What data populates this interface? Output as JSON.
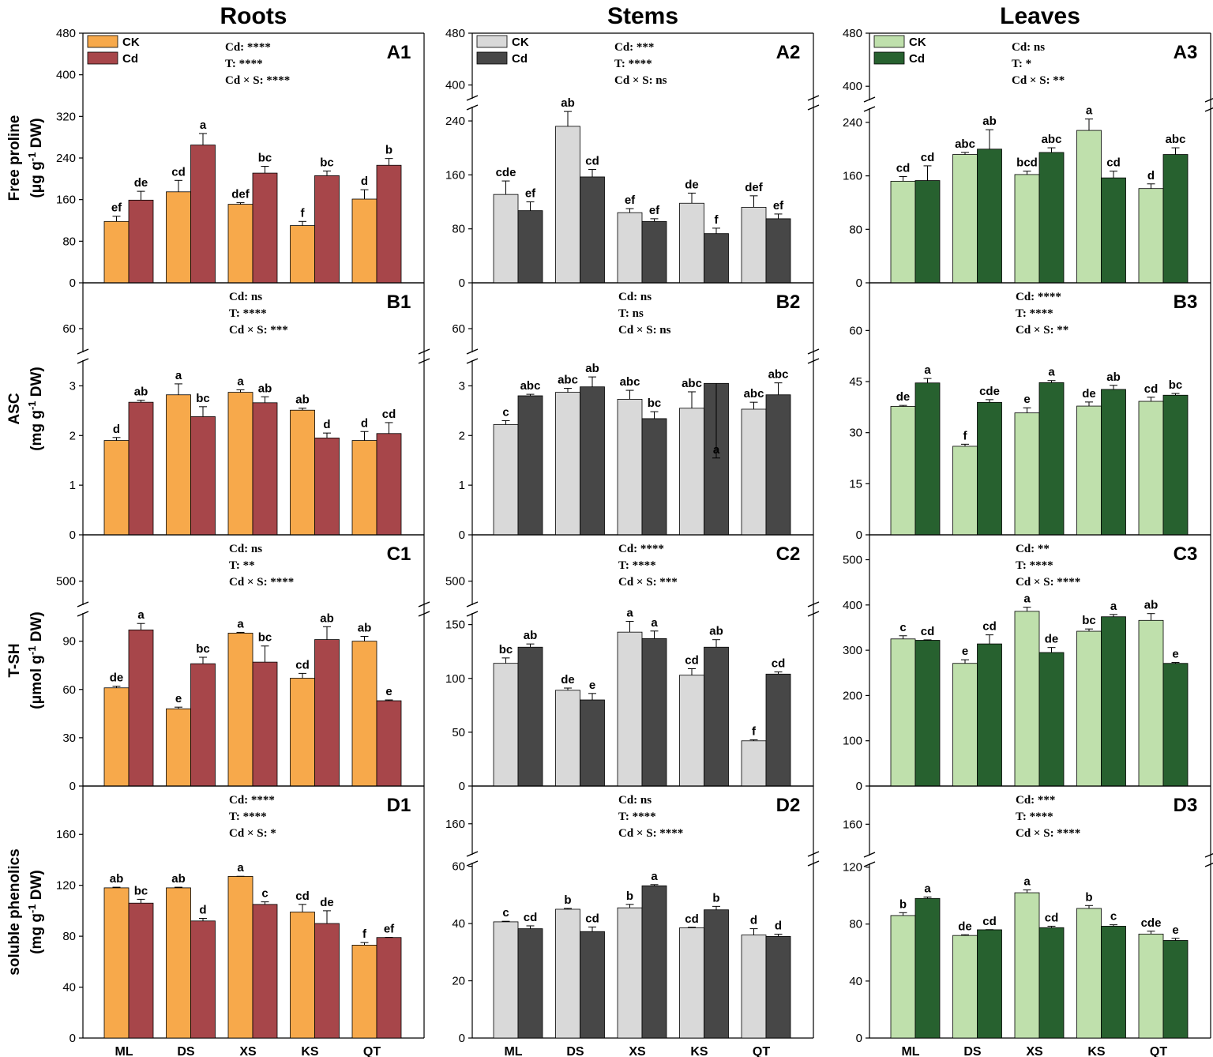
{
  "figure": {
    "column_titles": [
      "Roots",
      "Stems",
      "Leaves"
    ],
    "row_ylabels": [
      [
        "Free proline",
        "(μg g",
        "-1",
        " DW)"
      ],
      [
        "ASC",
        "(mg g",
        "-1",
        " DW)"
      ],
      [
        "T-SH",
        "(μmol g",
        "-1",
        " DW)"
      ],
      [
        "soluble phenolics",
        "(mg g",
        "-1",
        " DW)"
      ]
    ],
    "x_categories": [
      "ML",
      "DS",
      "XS",
      "KS",
      "QT"
    ],
    "legend_labels": [
      "CK",
      "Cd"
    ],
    "colors": {
      "Roots": [
        "#F7A94B",
        "#A7464A"
      ],
      "Stems": [
        "#D9D9D9",
        "#474747"
      ],
      "Leaves": [
        "#BFE0AC",
        "#27612F"
      ]
    }
  },
  "chart_data": [
    {
      "id": "A1",
      "type": "bar",
      "tissue": "Roots",
      "ylabel": "Free proline (μg g-1 DW)",
      "categories": [
        "ML",
        "DS",
        "XS",
        "KS",
        "QT"
      ],
      "series": [
        {
          "name": "CK",
          "values": [
            118,
            175,
            151,
            110,
            161
          ],
          "errors": [
            10,
            22,
            3,
            8,
            18
          ],
          "letters": [
            "ef",
            "cd",
            "def",
            "f",
            "d"
          ]
        },
        {
          "name": "Cd",
          "values": [
            159,
            265,
            211,
            206,
            226
          ],
          "errors": [
            17,
            22,
            13,
            9,
            13
          ],
          "letters": [
            "de",
            "a",
            "bc",
            "bc",
            "b"
          ]
        }
      ],
      "stats": [
        "Cd: ****",
        "T: ****",
        "Cd × S: ****"
      ],
      "ticks": [
        "0",
        "80",
        "160",
        "240",
        "320",
        "400",
        "480"
      ],
      "broken": false,
      "ylim": [
        0,
        480
      ]
    },
    {
      "id": "A2",
      "type": "bar",
      "tissue": "Stems",
      "ylabel": "Free proline (μg g-1 DW)",
      "categories": [
        "ML",
        "DS",
        "XS",
        "KS",
        "QT"
      ],
      "series": [
        {
          "name": "CK",
          "values": [
            131,
            232,
            104,
            118,
            112
          ],
          "errors": [
            20,
            22,
            6,
            15,
            17
          ],
          "letters": [
            "cde",
            "ab",
            "ef",
            "de",
            "def"
          ]
        },
        {
          "name": "Cd",
          "values": [
            107,
            157,
            91,
            73,
            95
          ],
          "errors": [
            13,
            11,
            4,
            8,
            7
          ],
          "letters": [
            "ef",
            "cd",
            "ef",
            "f",
            "ef"
          ]
        }
      ],
      "stats": [
        "Cd: ***",
        "T: ****",
        "Cd × S: ns"
      ],
      "ticks": [
        "0",
        "80",
        "160",
        "240",
        "400",
        "480"
      ],
      "broken": true,
      "lower_range": [
        0,
        260
      ],
      "upper_range": [
        380,
        480
      ]
    },
    {
      "id": "A3",
      "type": "bar",
      "tissue": "Leaves",
      "ylabel": "Free proline (μg g-1 DW)",
      "categories": [
        "ML",
        "DS",
        "XS",
        "KS",
        "QT"
      ],
      "series": [
        {
          "name": "CK",
          "values": [
            152,
            192,
            162,
            228,
            141
          ],
          "errors": [
            7,
            3,
            5,
            17,
            7
          ],
          "letters": [
            "cd",
            "abc",
            "bcd",
            "a",
            "d"
          ]
        },
        {
          "name": "Cd",
          "values": [
            153,
            200,
            195,
            157,
            192
          ],
          "errors": [
            22,
            29,
            7,
            10,
            10
          ],
          "letters": [
            "cd",
            "ab",
            "abc",
            "cd",
            "abc"
          ]
        }
      ],
      "stats": [
        "Cd: ns",
        "T: *",
        "Cd × S: **"
      ],
      "ticks": [
        "0",
        "80",
        "160",
        "240",
        "400",
        "480"
      ],
      "broken": true,
      "lower_range": [
        0,
        260
      ],
      "upper_range": [
        380,
        480
      ]
    },
    {
      "id": "B1",
      "type": "bar",
      "tissue": "Roots",
      "ylabel": "ASC (mg g-1 DW)",
      "categories": [
        "ML",
        "DS",
        "XS",
        "KS",
        "QT"
      ],
      "series": [
        {
          "name": "CK",
          "values": [
            1.9,
            2.82,
            2.87,
            2.51,
            1.9
          ],
          "errors": [
            0.06,
            0.22,
            0.05,
            0.04,
            0.18
          ],
          "letters": [
            "d",
            "a",
            "a",
            "ab",
            "d"
          ]
        },
        {
          "name": "Cd",
          "values": [
            2.67,
            2.38,
            2.66,
            1.95,
            2.04
          ],
          "errors": [
            0.04,
            0.2,
            0.12,
            0.1,
            0.22
          ],
          "letters": [
            "ab",
            "bc",
            "ab",
            "d",
            "cd"
          ]
        }
      ],
      "stats": [
        "Cd: ns",
        "T: ****",
        "Cd × S: ***"
      ],
      "ticks": [
        "0",
        "1",
        "2",
        "3",
        "60"
      ],
      "broken": true,
      "lower_range": [
        0,
        3.5
      ],
      "upper_range": [
        50,
        80
      ]
    },
    {
      "id": "B2",
      "type": "bar",
      "tissue": "Stems",
      "ylabel": "ASC (mg g-1 DW)",
      "categories": [
        "ML",
        "DS",
        "XS",
        "KS",
        "QT"
      ],
      "series": [
        {
          "name": "CK",
          "values": [
            2.22,
            2.87,
            2.73,
            2.55,
            2.53
          ],
          "errors": [
            0.08,
            0.08,
            0.18,
            0.33,
            0.14
          ],
          "letters": [
            "c",
            "abc",
            "abc",
            "abc",
            "abc"
          ]
        },
        {
          "name": "Cd",
          "values": [
            2.8,
            2.98,
            2.34,
            3.05,
            2.82
          ],
          "errors": [
            0.03,
            0.2,
            0.14,
            0.48,
            0.24
          ],
          "letters": [
            "abc",
            "ab",
            "bc",
            "a",
            "abc"
          ]
        }
      ],
      "stats": [
        "Cd: ns",
        "T: ns",
        "Cd × S: ns"
      ],
      "ticks": [
        "0",
        "1",
        "2",
        "3",
        "60"
      ],
      "broken": true,
      "lower_range": [
        0,
        3.5
      ],
      "upper_range": [
        50,
        80
      ]
    },
    {
      "id": "B3",
      "type": "bar",
      "tissue": "Leaves",
      "ylabel": "ASC (mg g-1 DW)",
      "categories": [
        "ML",
        "DS",
        "XS",
        "KS",
        "QT"
      ],
      "series": [
        {
          "name": "CK",
          "values": [
            37.7,
            26,
            35.8,
            37.8,
            39.2
          ],
          "errors": [
            0.3,
            0.6,
            1.5,
            1.2,
            1.2
          ],
          "letters": [
            "de",
            "f",
            "e",
            "de",
            "cd"
          ]
        },
        {
          "name": "Cd",
          "values": [
            44.6,
            38.9,
            44.7,
            42.7,
            41
          ],
          "errors": [
            1.3,
            0.8,
            0.6,
            1.2,
            0.5
          ],
          "letters": [
            "a",
            "cde",
            "a",
            "ab",
            "bc"
          ]
        }
      ],
      "stats": [
        "Cd: ****",
        "T: ****",
        "Cd × S: **"
      ],
      "ticks": [
        "0",
        "15",
        "30",
        "45",
        "60"
      ],
      "broken": false,
      "ylim": [
        0,
        74
      ]
    },
    {
      "id": "C1",
      "type": "bar",
      "tissue": "Roots",
      "ylabel": "T-SH (μmol g-1 DW)",
      "categories": [
        "ML",
        "DS",
        "XS",
        "KS",
        "QT"
      ],
      "series": [
        {
          "name": "CK",
          "values": [
            61,
            48,
            95,
            67,
            90
          ],
          "errors": [
            1,
            1,
            0.5,
            3,
            3
          ],
          "letters": [
            "de",
            "e",
            "a",
            "cd",
            "ab"
          ]
        },
        {
          "name": "Cd",
          "values": [
            97,
            76,
            77,
            91,
            53
          ],
          "errors": [
            4,
            4,
            10,
            8,
            0.5
          ],
          "letters": [
            "a",
            "bc",
            "bc",
            "ab",
            "e"
          ]
        }
      ],
      "stats": [
        "Cd: ns",
        "T: **",
        "Cd × S: ****"
      ],
      "ticks": [
        "0",
        "30",
        "60",
        "90",
        "500"
      ],
      "broken": true,
      "lower_range": [
        0,
        107
      ],
      "upper_range": [
        470,
        560
      ]
    },
    {
      "id": "C2",
      "type": "bar",
      "tissue": "Stems",
      "ylabel": "T-SH (μmol g-1 DW)",
      "categories": [
        "ML",
        "DS",
        "XS",
        "KS",
        "QT"
      ],
      "series": [
        {
          "name": "CK",
          "values": [
            114,
            89,
            143,
            103,
            42
          ],
          "errors": [
            5,
            2,
            10,
            6,
            1
          ],
          "letters": [
            "bc",
            "de",
            "a",
            "cd",
            "f"
          ]
        },
        {
          "name": "Cd",
          "values": [
            129,
            80,
            137,
            129,
            104
          ],
          "errors": [
            3,
            6,
            7,
            7,
            2
          ],
          "letters": [
            "ab",
            "e",
            "a",
            "ab",
            "cd"
          ]
        }
      ],
      "stats": [
        "Cd: ****",
        "T: ****",
        "Cd × S: ***"
      ],
      "ticks": [
        "0",
        "50",
        "100",
        "150",
        "500"
      ],
      "broken": true,
      "lower_range": [
        0,
        160
      ],
      "upper_range": [
        470,
        560
      ]
    },
    {
      "id": "C3",
      "type": "bar",
      "tissue": "Leaves",
      "ylabel": "T-SH (μmol g-1 DW)",
      "categories": [
        "ML",
        "DS",
        "XS",
        "KS",
        "QT"
      ],
      "series": [
        {
          "name": "CK",
          "values": [
            325,
            271,
            386,
            342,
            366
          ],
          "errors": [
            7,
            8,
            9,
            5,
            15
          ],
          "letters": [
            "c",
            "e",
            "a",
            "bc",
            "ab"
          ]
        },
        {
          "name": "Cd",
          "values": [
            322,
            314,
            295,
            374,
            271
          ],
          "errors": [
            1,
            20,
            11,
            5,
            2
          ],
          "letters": [
            "cd",
            "cd",
            "de",
            "a",
            "e"
          ]
        }
      ],
      "stats": [
        "Cd: **",
        "T: ****",
        "Cd × S: ****"
      ],
      "ticks": [
        "0",
        "100",
        "200",
        "300",
        "400",
        "500"
      ],
      "broken": false,
      "ylim": [
        0,
        555
      ]
    },
    {
      "id": "D1",
      "type": "bar",
      "tissue": "Roots",
      "ylabel": "soluble phenolics (mg g-1 DW)",
      "categories": [
        "ML",
        "DS",
        "XS",
        "KS",
        "QT"
      ],
      "series": [
        {
          "name": "CK",
          "values": [
            118,
            118,
            127,
            99,
            73
          ],
          "errors": [
            0.5,
            0.5,
            0.1,
            6,
            2
          ],
          "letters": [
            "ab",
            "ab",
            "a",
            "cd",
            "f"
          ]
        },
        {
          "name": "Cd",
          "values": [
            106,
            92,
            105,
            90,
            79
          ],
          "errors": [
            3,
            2,
            2,
            10,
            0.1
          ],
          "letters": [
            "bc",
            "d",
            "c",
            "de",
            "ef"
          ]
        }
      ],
      "stats": [
        "Cd: ****",
        "T: ****",
        "Cd × S: *"
      ],
      "ticks": [
        "0",
        "40",
        "80",
        "120",
        "160"
      ],
      "broken": false,
      "ylim": [
        0,
        198
      ]
    },
    {
      "id": "D2",
      "type": "bar",
      "tissue": "Stems",
      "ylabel": "soluble phenolics (mg g-1 DW)",
      "categories": [
        "ML",
        "DS",
        "XS",
        "KS",
        "QT"
      ],
      "series": [
        {
          "name": "CK",
          "values": [
            40.6,
            45,
            45.5,
            38.5,
            36
          ],
          "errors": [
            0.2,
            0.3,
            1.2,
            0.2,
            2.2
          ],
          "letters": [
            "c",
            "b",
            "b",
            "cd",
            "d"
          ]
        },
        {
          "name": "Cd",
          "values": [
            38.2,
            37.2,
            53.2,
            44.8,
            35.5
          ],
          "errors": [
            1,
            1.6,
            0.4,
            1.2,
            0.8
          ],
          "letters": [
            "cd",
            "cd",
            "a",
            "b",
            "d"
          ]
        }
      ],
      "stats": [
        "Cd: ns",
        "T: ****",
        "Cd × S: ****"
      ],
      "ticks": [
        "0",
        "20",
        "40",
        "60",
        "160"
      ],
      "broken": true,
      "lower_range": [
        0,
        61
      ],
      "upper_range": [
        140,
        185
      ]
    },
    {
      "id": "D3",
      "type": "bar",
      "tissue": "Leaves",
      "ylabel": "soluble phenolics (mg g-1 DW)",
      "categories": [
        "ML",
        "DS",
        "XS",
        "KS",
        "QT"
      ],
      "series": [
        {
          "name": "CK",
          "values": [
            86,
            72,
            102,
            91,
            73
          ],
          "errors": [
            2,
            0.5,
            2,
            2,
            2
          ],
          "letters": [
            "b",
            "de",
            "a",
            "b",
            "cde"
          ]
        },
        {
          "name": "Cd",
          "values": [
            98,
            76,
            77.5,
            78.5,
            68.5
          ],
          "errors": [
            1,
            0.1,
            1,
            1,
            1.5
          ],
          "letters": [
            "a",
            "cd",
            "cd",
            "c",
            "e"
          ]
        }
      ],
      "stats": [
        "Cd: ***",
        "T: ****",
        "Cd × S: ****"
      ],
      "ticks": [
        "0",
        "40",
        "80",
        "120",
        "160"
      ],
      "broken": true,
      "lower_range": [
        0,
        122
      ],
      "upper_range": [
        140,
        185
      ]
    }
  ]
}
